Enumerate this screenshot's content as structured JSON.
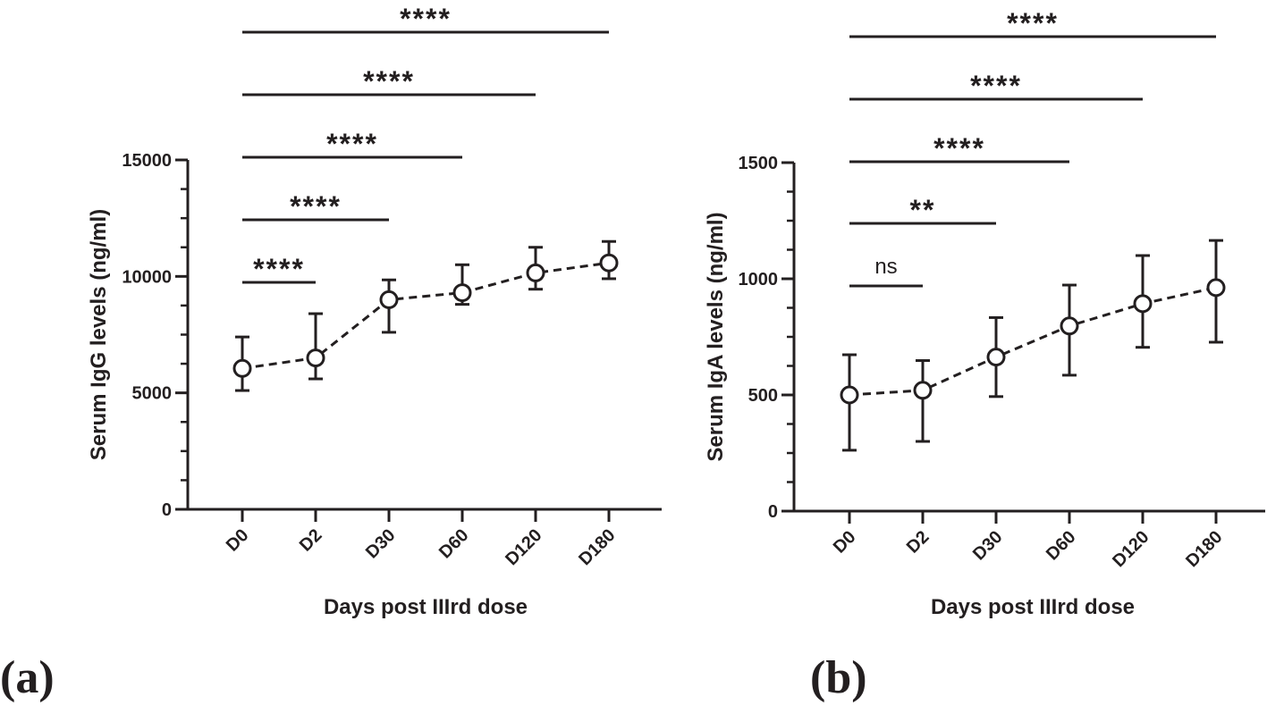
{
  "chart_data": [
    {
      "type": "line",
      "panel_label": "(a)",
      "categories": [
        "D0",
        "D2",
        "D30",
        "D60",
        "D120",
        "D180"
      ],
      "series": [
        {
          "name": "Serum IgG",
          "values": [
            6050,
            6500,
            9000,
            9300,
            10150,
            10580
          ],
          "err_low": [
            5100,
            5600,
            7600,
            8800,
            9450,
            9900
          ],
          "err_high": [
            7400,
            8400,
            9850,
            10500,
            11250,
            11500
          ]
        }
      ],
      "xlabel": "Days post IIIrd dose",
      "ylabel": "Serum IgG levels (ng/ml)",
      "ylim": [
        0,
        15000
      ],
      "yticks": [
        0,
        5000,
        10000,
        15000
      ],
      "ytick_labels": [
        "0",
        "5000",
        "10000",
        "15000"
      ],
      "line_style": "dashed",
      "marker": "open-circle",
      "comparisons": [
        {
          "from": "D0",
          "to": "D2",
          "label": "****"
        },
        {
          "from": "D0",
          "to": "D30",
          "label": "****"
        },
        {
          "from": "D0",
          "to": "D60",
          "label": "****"
        },
        {
          "from": "D0",
          "to": "D120",
          "label": "****"
        },
        {
          "from": "D0",
          "to": "D180",
          "label": "****"
        }
      ]
    },
    {
      "type": "line",
      "panel_label": "(b)",
      "categories": [
        "D0",
        "D2",
        "D30",
        "D60",
        "D120",
        "D180"
      ],
      "series": [
        {
          "name": "Serum IgA",
          "values": [
            500,
            520,
            663,
            797,
            893,
            962
          ],
          "err_low": [
            262,
            300,
            493,
            585,
            705,
            727
          ],
          "err_high": [
            673,
            648,
            833,
            973,
            1100,
            1165
          ]
        }
      ],
      "xlabel": "Days post IIIrd dose",
      "ylabel": "Serum IgA levels (ng/ml)",
      "ylim": [
        0,
        1500
      ],
      "yticks": [
        0,
        500,
        1000,
        1500
      ],
      "ytick_labels": [
        "0",
        "500",
        "1000",
        "1500"
      ],
      "line_style": "dashed",
      "marker": "open-circle",
      "comparisons": [
        {
          "from": "D0",
          "to": "D2",
          "label": "ns"
        },
        {
          "from": "D0",
          "to": "D30",
          "label": "**"
        },
        {
          "from": "D0",
          "to": "D60",
          "label": "****"
        },
        {
          "from": "D0",
          "to": "D120",
          "label": "****"
        },
        {
          "from": "D0",
          "to": "D180",
          "label": "****"
        }
      ]
    }
  ]
}
